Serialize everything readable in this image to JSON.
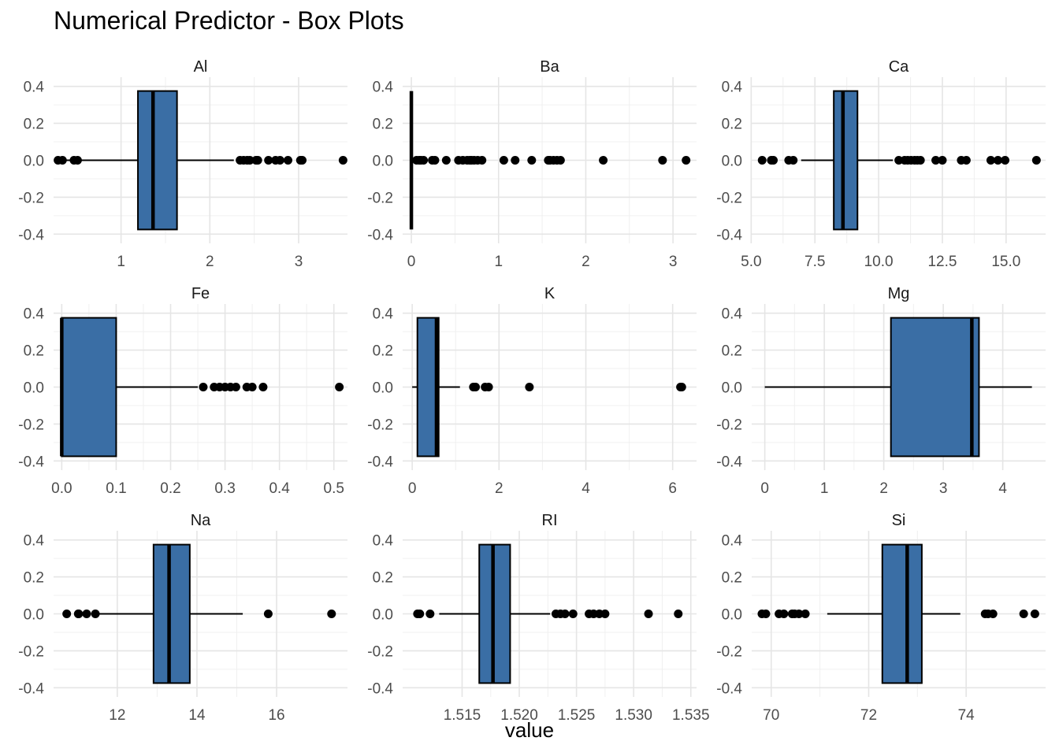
{
  "chart_data": {
    "type": "box",
    "title": "Numerical Predictor - Box Plots",
    "xlabel": "value",
    "ylabel": "",
    "y_ticks": [
      "0.4",
      "0.2",
      "0.0",
      "-0.2",
      "-0.4"
    ],
    "fill_color": "#3a6ea5",
    "grid": true,
    "panels": [
      {
        "name": "Al",
        "xlim": [
          0.24,
          3.55
        ],
        "xticks": [
          1,
          2,
          3
        ],
        "xtick_labels": [
          "1",
          "2",
          "3"
        ],
        "whisker_low": 0.29,
        "q1": 1.19,
        "median": 1.36,
        "q3": 1.63,
        "whisker_high": 2.27,
        "outliers": [
          0.29,
          0.34,
          0.47,
          0.51,
          2.34,
          2.38,
          2.42,
          2.45,
          2.52,
          2.54,
          2.66,
          2.74,
          2.79,
          2.88,
          3.02,
          3.04,
          3.5
        ]
      },
      {
        "name": "Ba",
        "xlim": [
          -0.1,
          3.27
        ],
        "xticks": [
          0,
          1,
          2,
          3
        ],
        "xtick_labels": [
          "0",
          "1",
          "2",
          "3"
        ],
        "whisker_low": 0.0,
        "q1": 0.0,
        "median": 0.0,
        "q3": 0.0,
        "whisker_high": 0.0,
        "outliers": [
          0.06,
          0.09,
          0.11,
          0.14,
          0.24,
          0.27,
          0.4,
          0.54,
          0.59,
          0.64,
          0.67,
          0.69,
          0.72,
          0.76,
          0.81,
          1.06,
          1.19,
          1.38,
          1.57,
          1.59,
          1.63,
          1.67,
          1.71,
          2.2,
          2.88,
          3.15
        ]
      },
      {
        "name": "Ca",
        "xlim": [
          5.02,
          16.55
        ],
        "xticks": [
          5,
          7.5,
          10,
          12.5,
          15
        ],
        "xtick_labels": [
          "5.0",
          "7.5",
          "10.0",
          "12.5",
          "15.0"
        ],
        "whisker_low": 6.96,
        "q1": 8.24,
        "median": 8.6,
        "q3": 9.17,
        "whisker_high": 10.56,
        "outliers": [
          5.43,
          5.79,
          5.87,
          6.47,
          6.65,
          10.79,
          11.02,
          11.14,
          11.27,
          11.41,
          11.52,
          11.64,
          12.24,
          12.5,
          13.24,
          13.44,
          14.4,
          14.68,
          14.96,
          16.19
        ]
      },
      {
        "name": "Fe",
        "xlim": [
          -0.015,
          0.525
        ],
        "xticks": [
          0,
          0.1,
          0.2,
          0.3,
          0.4,
          0.5
        ],
        "xtick_labels": [
          "0.0",
          "0.1",
          "0.2",
          "0.3",
          "0.4",
          "0.5"
        ],
        "whisker_low": 0.0,
        "q1": 0.0,
        "median": 0.0,
        "q3": 0.1,
        "whisker_high": 0.25,
        "outliers": [
          0.26,
          0.28,
          0.29,
          0.3,
          0.31,
          0.32,
          0.34,
          0.35,
          0.37,
          0.51
        ]
      },
      {
        "name": "K",
        "xlim": [
          -0.22,
          6.55
        ],
        "xticks": [
          0,
          2,
          4,
          6
        ],
        "xtick_labels": [
          "0",
          "2",
          "4",
          "6"
        ],
        "whisker_low": 0.0,
        "q1": 0.12,
        "median": 0.56,
        "q3": 0.61,
        "whisker_high": 1.1,
        "outliers": [
          1.41,
          1.46,
          1.68,
          1.76,
          2.7,
          6.18,
          6.21
        ]
      },
      {
        "name": "Mg",
        "xlim": [
          -0.22,
          4.72
        ],
        "xticks": [
          0,
          1,
          2,
          3,
          4
        ],
        "xtick_labels": [
          "0",
          "1",
          "2",
          "3",
          "4"
        ],
        "whisker_low": 0.0,
        "q1": 2.12,
        "median": 3.48,
        "q3": 3.6,
        "whisker_high": 4.49,
        "outliers": []
      },
      {
        "name": "Na",
        "xlim": [
          10.4,
          17.78
        ],
        "xticks": [
          12,
          14,
          16
        ],
        "xtick_labels": [
          "12",
          "14",
          "16"
        ],
        "whisker_low": 11.45,
        "q1": 12.91,
        "median": 13.3,
        "q3": 13.82,
        "whisker_high": 15.15,
        "outliers": [
          10.73,
          11.02,
          11.03,
          11.23,
          11.45,
          15.79,
          17.38
        ]
      },
      {
        "name": "RI",
        "xlim": [
          1.5098,
          1.5355
        ],
        "xticks": [
          1.515,
          1.52,
          1.525,
          1.53,
          1.535
        ],
        "xtick_labels": [
          "1.515",
          "1.520",
          "1.525",
          "1.530",
          "1.535"
        ],
        "whisker_low": 1.513,
        "q1": 1.5165,
        "median": 1.5177,
        "q3": 1.5192,
        "whisker_high": 1.5227,
        "outliers": [
          1.5111,
          1.5113,
          1.5122,
          1.5232,
          1.5236,
          1.524,
          1.5247,
          1.5261,
          1.5265,
          1.527,
          1.5275,
          1.5313,
          1.5339
        ]
      },
      {
        "name": "Si",
        "xlim": [
          69.6,
          75.63
        ],
        "xticks": [
          70,
          72,
          74
        ],
        "xtick_labels": [
          "70",
          "72",
          "74"
        ],
        "whisker_low": 71.15,
        "q1": 72.28,
        "median": 72.79,
        "q3": 73.09,
        "whisker_high": 73.88,
        "outliers": [
          69.81,
          69.89,
          70.16,
          70.26,
          70.43,
          70.48,
          70.57,
          70.7,
          74.39,
          74.45,
          74.55,
          75.18,
          75.41
        ]
      }
    ]
  }
}
